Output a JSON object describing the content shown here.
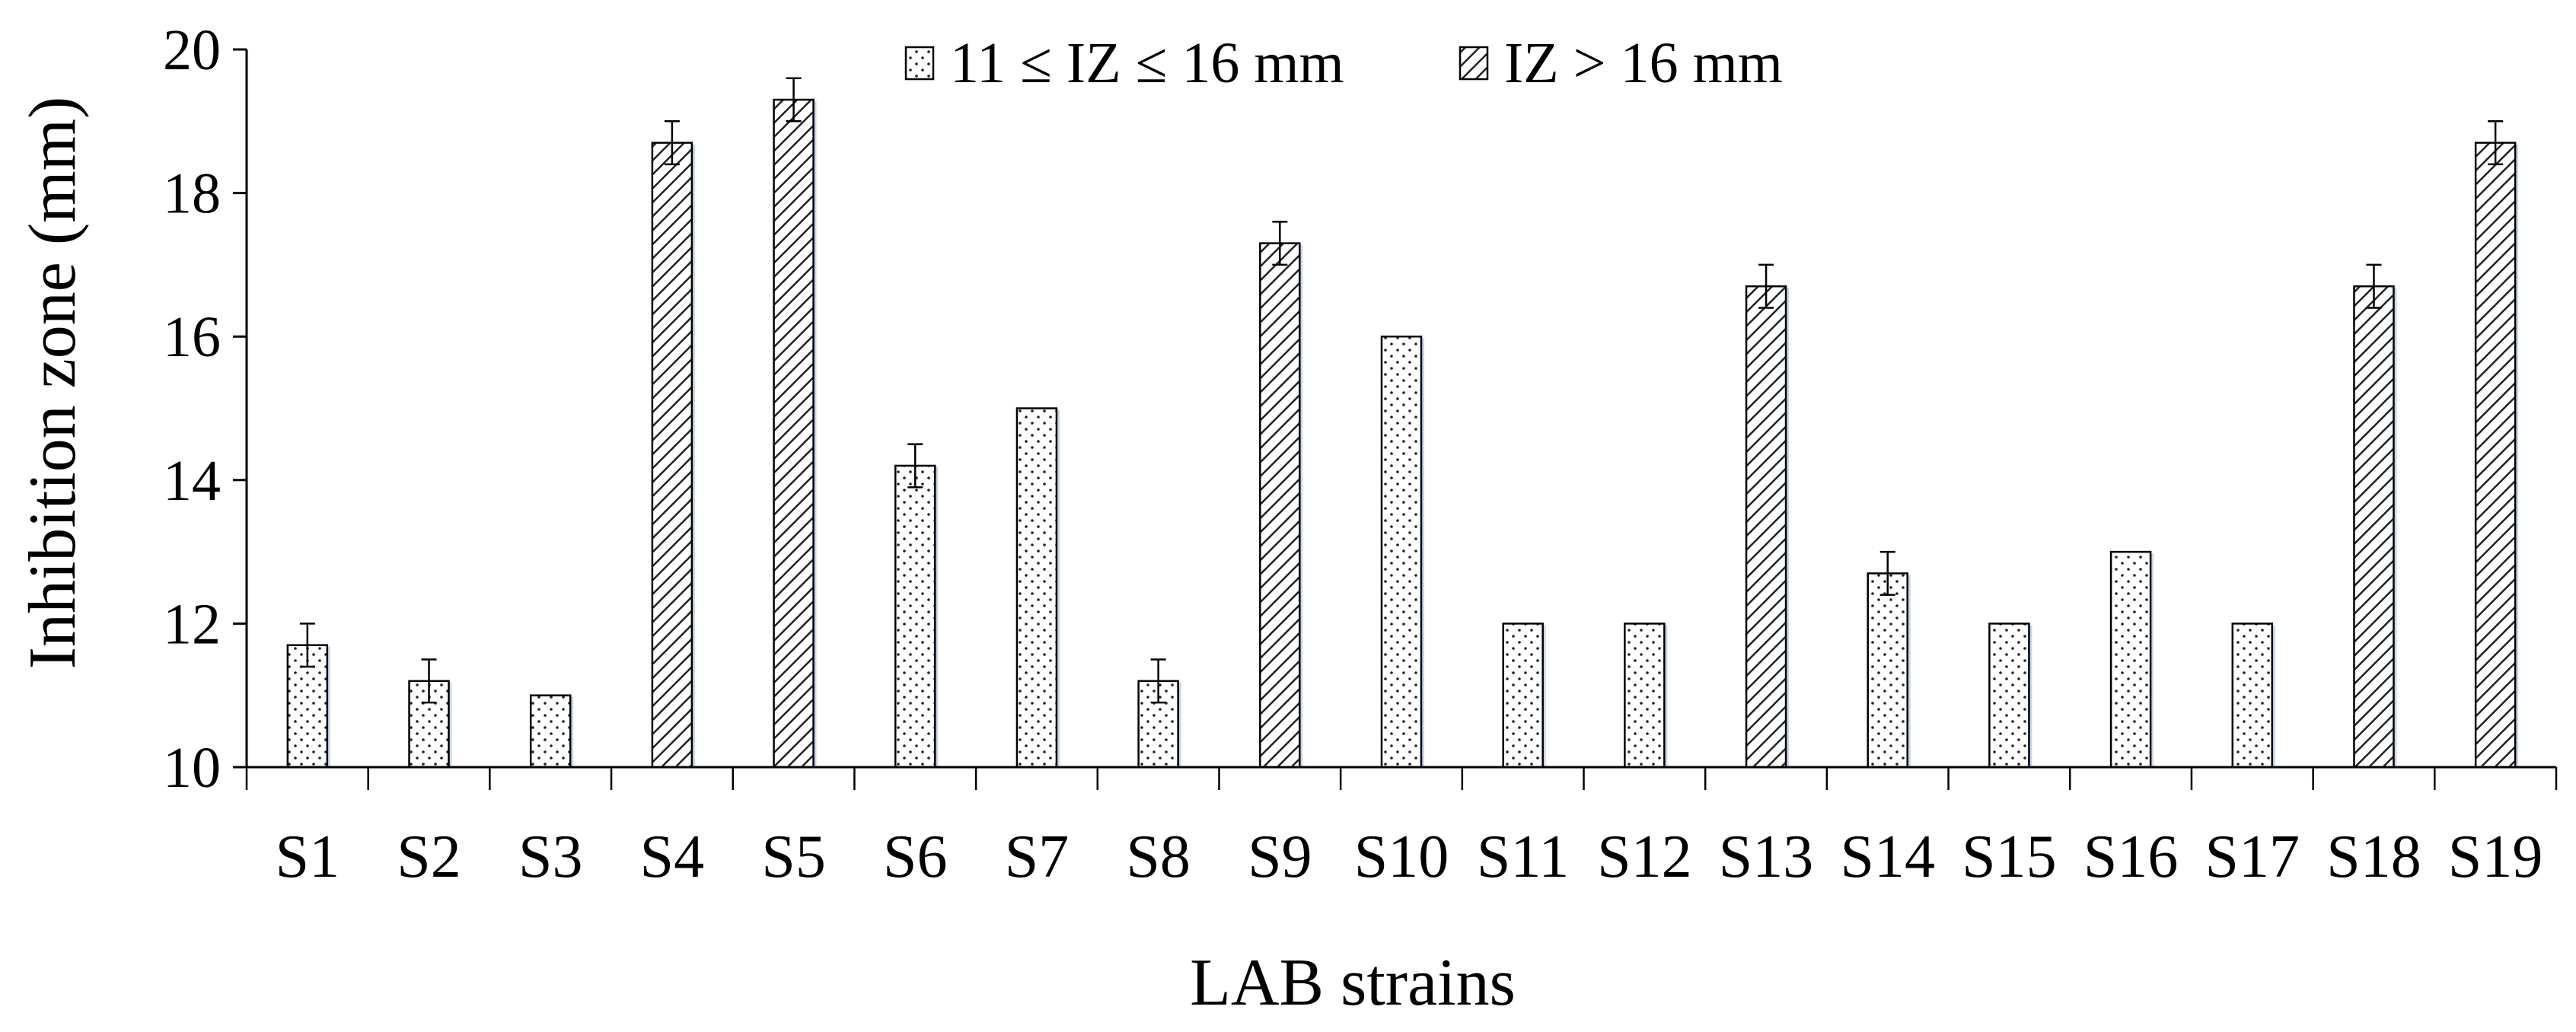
{
  "chart_data": {
    "type": "bar",
    "xlabel": "LAB strains",
    "ylabel": "Inhibition zone (mm)",
    "ylim": [
      10,
      20
    ],
    "yticks": [
      10,
      12,
      14,
      16,
      18,
      20
    ],
    "grid": false,
    "legend_position": "top",
    "categories": [
      "S1",
      "S2",
      "S3",
      "S4",
      "S5",
      "S6",
      "S7",
      "S8",
      "S9",
      "S10",
      "S11",
      "S12",
      "S13",
      "S14",
      "S15",
      "S16",
      "S17",
      "S18",
      "S19"
    ],
    "values": [
      11.7,
      11.2,
      11.0,
      18.7,
      19.3,
      14.2,
      15.0,
      11.2,
      17.3,
      16.0,
      12.0,
      12.0,
      16.7,
      12.7,
      12.0,
      13.0,
      12.0,
      16.7,
      18.7
    ],
    "errors": [
      0.3,
      0.3,
      0,
      0.3,
      0.3,
      0.3,
      0,
      0.3,
      0.3,
      0,
      0,
      0,
      0.3,
      0.3,
      0,
      0,
      0,
      0.3,
      0.3
    ],
    "groups": [
      "dots",
      "dots",
      "dots",
      "hatch",
      "hatch",
      "dots",
      "dots",
      "dots",
      "hatch",
      "dots",
      "dots",
      "dots",
      "hatch",
      "dots",
      "dots",
      "dots",
      "dots",
      "hatch",
      "hatch"
    ],
    "legend": [
      {
        "key": "dots",
        "label": "11 ≤ IZ ≤ 16 mm"
      },
      {
        "key": "hatch",
        "label": "IZ > 16 mm"
      }
    ]
  }
}
